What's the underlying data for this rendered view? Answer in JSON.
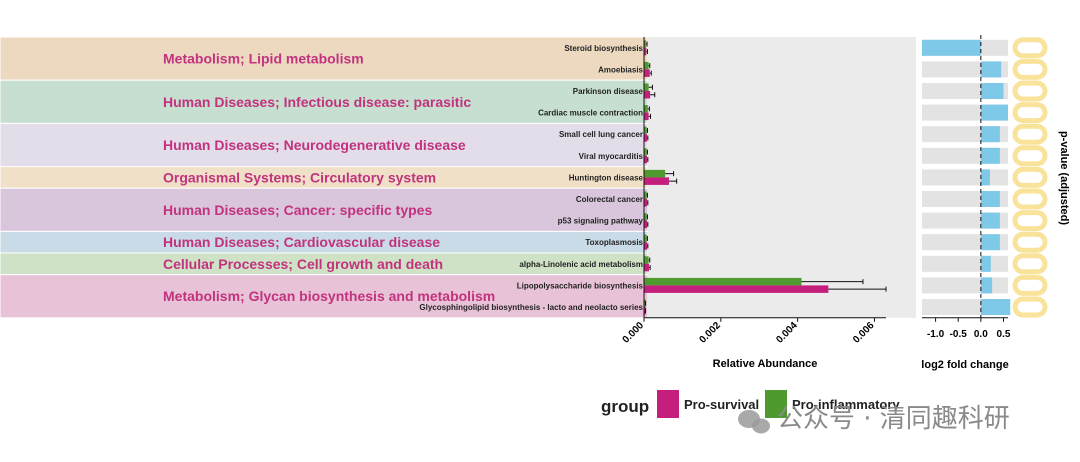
{
  "chart_data": {
    "type": "bar",
    "categories": [
      {
        "name": "Metabolism; Lipid metabolism",
        "color": "#ecd9c0",
        "start": 0,
        "count": 2
      },
      {
        "name": "Human Diseases; Infectious disease: parasitic",
        "color": "#c7dfd0",
        "start": 2,
        "count": 2
      },
      {
        "name": "Human Diseases; Neurodegenerative disease",
        "color": "#e2dde9",
        "start": 4,
        "count": 2
      },
      {
        "name": "Organismal Systems; Circulatory system",
        "color": "#f1e0c8",
        "start": 6,
        "count": 1
      },
      {
        "name": "Human Diseases; Cancer: specific types",
        "color": "#d9c6dd",
        "start": 7,
        "count": 2
      },
      {
        "name": "Human Diseases; Cardiovascular disease",
        "color": "#c9dbe6",
        "start": 9,
        "count": 1
      },
      {
        "name": "Cellular Processes; Cell growth and death",
        "color": "#cfe2c6",
        "start": 10,
        "count": 1
      },
      {
        "name": "Metabolism; Glycan biosynthesis and metabolism",
        "color": "#e8c3d8",
        "start": 11,
        "count": 2
      }
    ],
    "pathways": [
      "Steroid biosynthesis",
      "Amoebiasis",
      "Parkinson disease",
      "Cardiac muscle contraction",
      "Small cell lung cancer",
      "Viral myocarditis",
      "Huntington disease",
      "Colorectal cancer",
      "p53 signaling pathway",
      "Toxoplasmosis",
      "alpha-Linolenic acid metabolism",
      "Lipopolysaccharide biosynthesis",
      "Glycosphingolipid biosynthesis - lacto and neolacto series"
    ],
    "abundance": {
      "xlabel": "Relative Abundance",
      "xlim": [
        0,
        0.0063
      ],
      "ticks": [
        "0.000",
        "0.002",
        "0.004",
        "0.006"
      ],
      "tick_values": [
        0,
        0.002,
        0.004,
        0.006
      ],
      "series": [
        {
          "name": "Pro-inflammatory",
          "color": "#4e9a2e",
          "values": [
            5e-05,
            0.00012,
            0.00012,
            0.0001,
            7e-05,
            7e-05,
            0.00055,
            7e-05,
            7e-05,
            7e-05,
            0.00012,
            0.0041,
            3e-05
          ],
          "errors": [
            3e-05,
            3e-05,
            0.0001,
            4e-05,
            2e-05,
            2e-05,
            0.00022,
            2e-05,
            2e-05,
            2e-05,
            3e-05,
            0.0016,
            1e-05
          ]
        },
        {
          "name": "Pro-survival",
          "color": "#c41f7c",
          "values": [
            6e-05,
            0.00015,
            0.00016,
            0.00012,
            8e-05,
            8e-05,
            0.00065,
            8e-05,
            8e-05,
            8e-05,
            0.00013,
            0.0048,
            3e-05
          ],
          "errors": [
            3e-05,
            4e-05,
            0.00012,
            5e-05,
            2e-05,
            2e-05,
            0.0002,
            2e-05,
            2e-05,
            2e-05,
            3e-05,
            0.0015,
            1e-05
          ]
        }
      ]
    },
    "fold_change": {
      "xlabel": "log2 fold change",
      "xlim": [
        -1.3,
        0.6
      ],
      "ticks": [
        "-1.0",
        "-0.5",
        "0.0",
        "0.5"
      ],
      "tick_values": [
        -1.0,
        -0.5,
        0.0,
        0.5
      ],
      "values": [
        -1.3,
        0.45,
        0.5,
        0.6,
        0.42,
        0.42,
        0.2,
        0.42,
        0.42,
        0.42,
        0.22,
        0.25,
        0.65
      ],
      "bar_color": "#7ec8e8",
      "background_color": "#e3e3e3"
    },
    "pvalue_label": "p-value (adjusted)",
    "legend": {
      "title": "group",
      "items": [
        {
          "label": "Pro-survival",
          "color": "#c41f7c"
        },
        {
          "label": "Pro-inflammatory",
          "color": "#4e9a2e"
        }
      ]
    },
    "watermark": "公众号 · 清同趣科研"
  }
}
